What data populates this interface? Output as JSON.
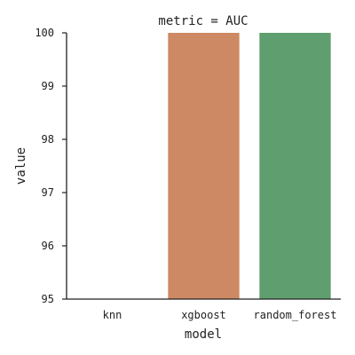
{
  "chart_data": {
    "type": "bar",
    "title": "metric = AUC",
    "xlabel": "model",
    "ylabel": "value",
    "categories": [
      "knn",
      "xgboost",
      "random_forest"
    ],
    "values": [
      95.0,
      100.0,
      100.0
    ],
    "colors": [
      "#4c72b0",
      "#cc8963",
      "#5f9e6e"
    ],
    "ylim": [
      95,
      100
    ],
    "yticks": [
      95,
      96,
      97,
      98,
      99,
      100
    ],
    "grid": false,
    "legend": "none"
  }
}
